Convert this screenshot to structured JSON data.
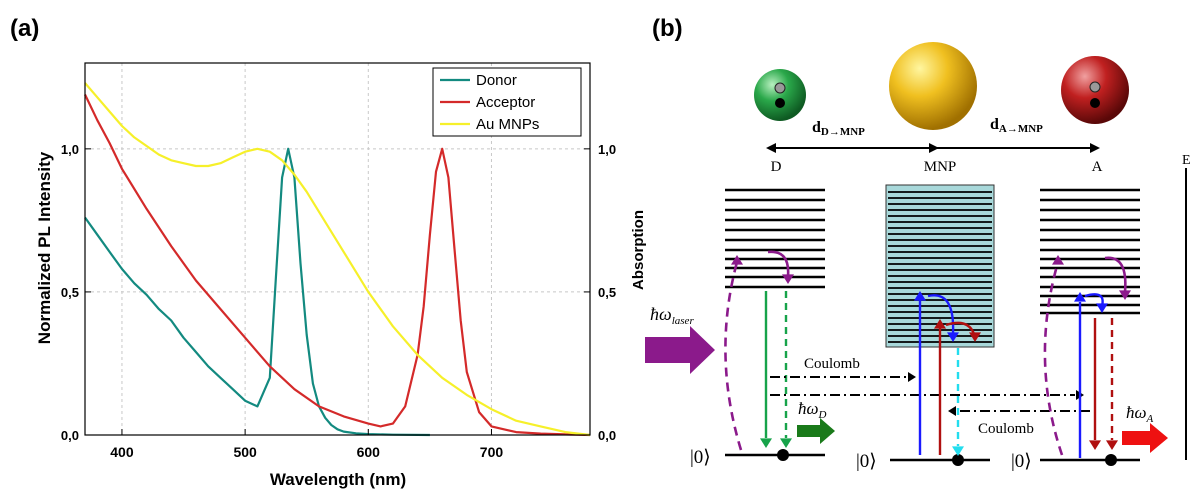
{
  "panels": {
    "a": "(a)",
    "b": "(b)"
  },
  "chart_data": {
    "type": "line",
    "xlabel": "Wavelength (nm)",
    "ylabel": "Normalized PL Intensity",
    "y2label": "Absorption",
    "xlim": [
      370,
      780
    ],
    "ylim": [
      0,
      1.3
    ],
    "xticks": [
      400,
      500,
      600,
      700
    ],
    "xtick_labels": [
      "400",
      "500",
      "600",
      "700"
    ],
    "yticks": [
      0,
      0.5,
      1.0
    ],
    "ytick_labels": [
      "0,0",
      "0,5",
      "1,0"
    ],
    "y2tick_labels": [
      "0,0",
      "0,5",
      "1,0"
    ],
    "grid": true,
    "legend_position": "top-right",
    "series": [
      {
        "name": "Donor",
        "color": "#138a80",
        "x": [
          370,
          380,
          390,
          400,
          410,
          420,
          430,
          440,
          450,
          460,
          470,
          480,
          490,
          500,
          510,
          520,
          525,
          530,
          535,
          540,
          545,
          550,
          555,
          560,
          565,
          570,
          575,
          580,
          590,
          600,
          620,
          650
        ],
        "y": [
          0.76,
          0.7,
          0.64,
          0.58,
          0.53,
          0.49,
          0.44,
          0.4,
          0.34,
          0.29,
          0.24,
          0.2,
          0.16,
          0.12,
          0.1,
          0.2,
          0.55,
          0.9,
          1.0,
          0.9,
          0.6,
          0.35,
          0.18,
          0.1,
          0.06,
          0.035,
          0.02,
          0.012,
          0.006,
          0.003,
          0.001,
          0.0
        ]
      },
      {
        "name": "Acceptor",
        "color": "#d42a2a",
        "x": [
          370,
          380,
          390,
          400,
          420,
          440,
          460,
          480,
          500,
          520,
          540,
          560,
          580,
          600,
          610,
          620,
          630,
          640,
          645,
          650,
          655,
          660,
          665,
          670,
          675,
          680,
          690,
          700,
          720,
          740,
          760,
          780
        ],
        "y": [
          1.19,
          1.1,
          1.02,
          0.93,
          0.79,
          0.66,
          0.54,
          0.44,
          0.34,
          0.24,
          0.16,
          0.1,
          0.065,
          0.04,
          0.03,
          0.04,
          0.1,
          0.28,
          0.45,
          0.7,
          0.92,
          1.0,
          0.9,
          0.65,
          0.4,
          0.22,
          0.08,
          0.03,
          0.01,
          0.005,
          0.002,
          0.0
        ]
      },
      {
        "name": "Au MNPs",
        "color": "#f6f02a",
        "x": [
          370,
          380,
          390,
          400,
          410,
          420,
          430,
          440,
          450,
          460,
          470,
          480,
          490,
          500,
          510,
          520,
          530,
          540,
          550,
          560,
          580,
          600,
          620,
          640,
          660,
          680,
          700,
          720,
          740,
          760,
          780
        ],
        "y": [
          1.23,
          1.18,
          1.13,
          1.08,
          1.04,
          1.01,
          0.98,
          0.96,
          0.95,
          0.94,
          0.94,
          0.95,
          0.97,
          0.99,
          1.0,
          0.99,
          0.96,
          0.91,
          0.85,
          0.78,
          0.64,
          0.5,
          0.38,
          0.28,
          0.2,
          0.14,
          0.09,
          0.05,
          0.03,
          0.01,
          0.0
        ]
      }
    ]
  },
  "diagram": {
    "labels": {
      "d_dmnp": "d",
      "d_dmnp_sub": "D→MNP",
      "d_amnp": "d",
      "d_amnp_sub": "A→MNP",
      "donor": "D",
      "mnp": "MNP",
      "acceptor": "A",
      "energy": "E",
      "coulomb_top": "Coulomb",
      "coulomb_bottom": "Coulomb",
      "ground_ket": "|0⟩",
      "hbar": "ħω",
      "laser_sub": "laser",
      "donor_sub": "D",
      "acceptor_sub": "A"
    },
    "colors": {
      "purple": "#8b1a8b",
      "green": "#17a34a",
      "blue": "#1a1aff",
      "dark_red": "#b01010",
      "cyan": "#22ddee",
      "red_arrow": "#ee1111",
      "mnp_box": "#a8d8da",
      "donor_sphere": "#2aa84a",
      "mnp_sphere": "#f0c020",
      "acceptor_sphere": "#c02020"
    }
  }
}
